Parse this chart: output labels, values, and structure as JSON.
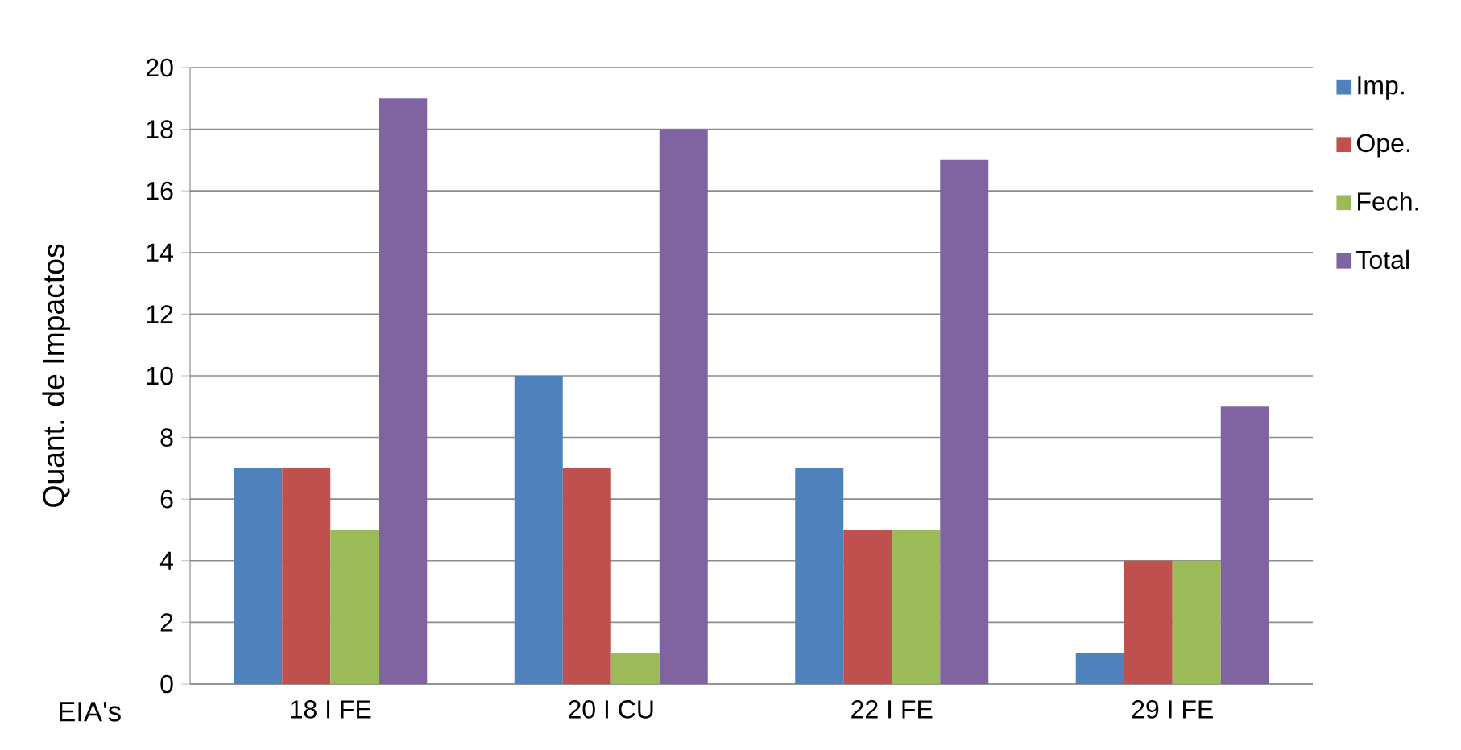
{
  "chart_data": {
    "type": "bar",
    "xlabel": "EIA's",
    "ylabel": "Quant. de Impactos",
    "categories": [
      "18 I FE",
      "20 I CU",
      "22 I FE",
      "29 I FE"
    ],
    "series": [
      {
        "name": "Imp.",
        "color": "#4f81bd",
        "values": [
          7,
          10,
          7,
          1
        ]
      },
      {
        "name": "Ope.",
        "color": "#c0504d",
        "values": [
          7,
          7,
          5,
          4
        ]
      },
      {
        "name": "Fech.",
        "color": "#9bbb59",
        "values": [
          5,
          1,
          5,
          4
        ]
      },
      {
        "name": "Total",
        "color": "#8064a2",
        "values": [
          19,
          18,
          17,
          9
        ]
      }
    ],
    "ylim": [
      0,
      20
    ],
    "yticks": [
      0,
      2,
      4,
      6,
      8,
      10,
      12,
      14,
      16,
      18,
      20
    ],
    "grid": "y",
    "legend": "right"
  }
}
